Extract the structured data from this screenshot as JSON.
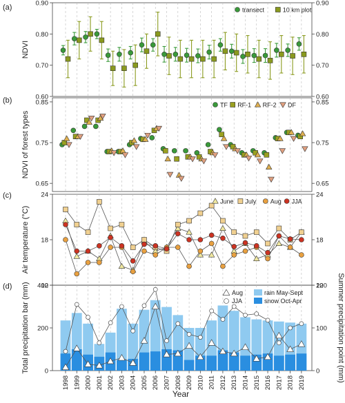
{
  "figure": {
    "x_label": "Year",
    "years": [
      "1998",
      "1999",
      "2000",
      "2001",
      "2002",
      "2003",
      "2004",
      "2005",
      "2006",
      "2007",
      "2008",
      "2009",
      "2010",
      "2011",
      "2012",
      "2013",
      "2014",
      "2015",
      "2016",
      "2017",
      "2018",
      "2019"
    ],
    "colors": {
      "ndvi_transect": "#3a9a3a",
      "ndvi_plot": "#8a9a1e",
      "tf": "#3a9a3a",
      "rf1": "#9aa020",
      "rf2": "#e0b050",
      "df": "#e0a080",
      "june": "#f0e8a0",
      "july": "#f0d090",
      "aug": "#e8a040",
      "jja": "#cc3322",
      "rain": "#8fcaf0",
      "snow": "#2a8ee0"
    }
  },
  "chart_data": [
    {
      "panel": "(a)",
      "type": "scatter",
      "ylabel": "NDVI",
      "ylim": [
        0.6,
        0.9
      ],
      "yticks": [
        "0.60",
        "0.70",
        "0.80",
        "0.90"
      ],
      "right_axis": true,
      "legend": {
        "position": "top-right",
        "entries": [
          "transect",
          "10 km plot"
        ]
      },
      "series": [
        {
          "name": "transect",
          "marker": "circle",
          "x": [
            1998,
            1999,
            2000,
            2001,
            2002,
            2003,
            2004,
            2005,
            2006,
            2007,
            2008,
            2009,
            2010,
            2011,
            2012,
            2013,
            2014,
            2015,
            2016,
            2017,
            2018,
            2019
          ],
          "y": [
            0.748,
            0.785,
            0.79,
            0.8,
            0.732,
            0.735,
            0.74,
            0.765,
            0.765,
            0.735,
            0.735,
            0.732,
            0.73,
            0.742,
            0.765,
            0.745,
            0.728,
            0.731,
            0.731,
            0.748,
            0.748,
            0.768
          ],
          "err": [
            0.015,
            0.02,
            0.018,
            0.015,
            0.02,
            0.022,
            0.02,
            0.022,
            0.02,
            0.025,
            0.022,
            0.022,
            0.022,
            0.022,
            0.02,
            0.022,
            0.022,
            0.022,
            0.022,
            0.022,
            0.02,
            0.02
          ]
        },
        {
          "name": "10 km plot",
          "marker": "square",
          "x": [
            1998,
            1999,
            2000,
            2001,
            2002,
            2003,
            2004,
            2005,
            2006,
            2007,
            2008,
            2009,
            2010,
            2011,
            2012,
            2013,
            2014,
            2015,
            2016,
            2017,
            2018,
            2019
          ],
          "y": [
            0.72,
            0.78,
            0.8,
            0.78,
            0.69,
            0.69,
            0.7,
            0.745,
            0.8,
            0.73,
            0.72,
            0.72,
            0.72,
            0.72,
            0.745,
            0.74,
            0.735,
            0.72,
            0.715,
            0.735,
            0.73,
            0.735
          ],
          "err": [
            0.06,
            0.06,
            0.055,
            0.06,
            0.055,
            0.06,
            0.065,
            0.055,
            0.07,
            0.06,
            0.06,
            0.06,
            0.06,
            0.06,
            0.06,
            0.06,
            0.06,
            0.06,
            0.06,
            0.06,
            0.06,
            0.06
          ]
        }
      ]
    },
    {
      "panel": "(b)",
      "type": "scatter",
      "ylabel": "NDVI of forest types",
      "ylim": [
        0.63,
        0.86
      ],
      "yticks": [
        "0.65",
        "0.75",
        "0.85"
      ],
      "right_axis": true,
      "legend": {
        "position": "top-right",
        "entries": [
          "TF",
          "RF-1",
          "RF-2",
          "DF"
        ]
      },
      "series": [
        {
          "name": "TF",
          "marker": "circle",
          "x": [
            1998,
            1999,
            2000,
            2001,
            2002,
            2003,
            2004,
            2005,
            2006,
            2007,
            2008,
            2009,
            2010,
            2011,
            2012,
            2013,
            2014,
            2015,
            2016,
            2017,
            2018,
            2019
          ],
          "y": [
            0.745,
            0.78,
            0.79,
            0.79,
            0.728,
            0.728,
            0.745,
            0.76,
            0.762,
            0.735,
            0.73,
            0.73,
            0.725,
            0.745,
            0.782,
            0.745,
            0.725,
            0.73,
            0.725,
            0.762,
            0.775,
            0.768
          ]
        },
        {
          "name": "RF-1",
          "marker": "square",
          "x": [
            1998,
            1999,
            2000,
            2001,
            2002,
            2003,
            2004,
            2005,
            2006,
            2007,
            2008,
            2009,
            2010,
            2011,
            2012,
            2013,
            2014,
            2015,
            2016,
            2017,
            2018,
            2019
          ],
          "y": [
            0.75,
            0.765,
            0.805,
            0.805,
            0.728,
            0.728,
            0.75,
            0.758,
            0.78,
            0.73,
            0.71,
            0.715,
            0.715,
            0.728,
            0.77,
            0.74,
            0.72,
            0.725,
            0.72,
            0.76,
            0.775,
            0.765
          ]
        },
        {
          "name": "RF-2",
          "marker": "triangle-up",
          "x": [
            1998,
            1999,
            2000,
            2001,
            2002,
            2003,
            2004,
            2005,
            2006,
            2007,
            2008,
            2009,
            2010,
            2011,
            2012,
            2013,
            2014,
            2015,
            2016,
            2017,
            2018,
            2019
          ],
          "y": [
            0.76,
            0.765,
            0.8,
            0.81,
            0.73,
            0.73,
            0.755,
            0.758,
            0.785,
            0.71,
            0.67,
            0.715,
            0.71,
            0.725,
            0.76,
            0.735,
            0.72,
            0.72,
            0.69,
            0.76,
            0.775,
            0.772
          ]
        },
        {
          "name": "DF",
          "marker": "triangle-down",
          "x": [
            1998,
            1999,
            2000,
            2001,
            2002,
            2003,
            2004,
            2005,
            2006,
            2007,
            2008,
            2009,
            2010,
            2011,
            2012,
            2013,
            2014,
            2015,
            2016,
            2017,
            2018,
            2019
          ],
          "y": [
            0.745,
            0.765,
            0.81,
            0.815,
            0.725,
            0.72,
            0.74,
            0.768,
            0.785,
            0.672,
            0.662,
            0.71,
            0.705,
            0.72,
            0.74,
            0.73,
            0.712,
            0.705,
            0.66,
            0.73,
            0.76,
            0.735
          ]
        }
      ]
    },
    {
      "panel": "(c)",
      "type": "line",
      "ylabel": "Air temperature (°C)",
      "ylim": [
        12,
        24
      ],
      "yticks": [
        "12",
        "18",
        "24"
      ],
      "right_axis": true,
      "legend": {
        "position": "top-right",
        "entries": [
          "June",
          "July",
          "Aug",
          "JJA"
        ]
      },
      "series": [
        {
          "name": "June",
          "marker": "triangle-up",
          "x": [
            1998,
            1999,
            2000,
            2001,
            2002,
            2003,
            2004,
            2005,
            2006,
            2007,
            2008,
            2009,
            2010,
            2011,
            2012,
            2013,
            2014,
            2015,
            2016,
            2017,
            2018,
            2019
          ],
          "y": [
            20.5,
            15.8,
            16.5,
            15.5,
            18.5,
            14.5,
            14.0,
            17.8,
            16.5,
            17.0,
            19.5,
            19.0,
            16.0,
            16.0,
            19.5,
            16.5,
            17.5,
            15.5,
            16.0,
            17.5,
            17.0,
            19.0
          ]
        },
        {
          "name": "July",
          "marker": "square",
          "x": [
            1998,
            1999,
            2000,
            2001,
            2002,
            2003,
            2004,
            2005,
            2006,
            2007,
            2008,
            2009,
            2010,
            2011,
            2012,
            2013,
            2014,
            2015,
            2016,
            2017,
            2018,
            2019
          ],
          "y": [
            22.0,
            20.0,
            19.0,
            23.0,
            19.5,
            20.0,
            17.0,
            18.0,
            17.0,
            16.5,
            20.0,
            20.5,
            21.5,
            22.5,
            20.5,
            19.0,
            18.5,
            19.0,
            17.5,
            19.5,
            18.0,
            19.0
          ]
        },
        {
          "name": "Aug",
          "marker": "circle",
          "x": [
            1998,
            1999,
            2000,
            2001,
            2002,
            2003,
            2004,
            2005,
            2006,
            2007,
            2008,
            2009,
            2010,
            2011,
            2012,
            2013,
            2014,
            2015,
            2016,
            2017,
            2018,
            2019
          ],
          "y": [
            18.0,
            13.5,
            15.0,
            15.0,
            17.0,
            17.0,
            13.8,
            16.5,
            16.0,
            17.0,
            17.0,
            14.5,
            16.5,
            17.5,
            14.5,
            16.0,
            16.5,
            17.0,
            15.5,
            18.5,
            17.0,
            16.0
          ]
        },
        {
          "name": "JJA",
          "marker": "circle",
          "x": [
            1998,
            1999,
            2000,
            2001,
            2002,
            2003,
            2004,
            2005,
            2006,
            2007,
            2008,
            2009,
            2010,
            2011,
            2012,
            2013,
            2014,
            2015,
            2016,
            2017,
            2018,
            2019
          ],
          "y": [
            20.0,
            16.5,
            16.5,
            17.2,
            18.3,
            17.2,
            15.2,
            17.4,
            17.2,
            16.8,
            18.8,
            18.0,
            18.0,
            18.6,
            18.2,
            17.1,
            17.6,
            17.2,
            16.3,
            18.5,
            18.1,
            18.0
          ]
        }
      ]
    },
    {
      "panel": "(d)",
      "type": "bar",
      "ylabel": "Total precipitation bar (mm)",
      "y2label": "Summer precipitation point (mm)",
      "ylim": [
        0,
        400
      ],
      "yticks": [
        "0",
        "200",
        "400"
      ],
      "y2lim": [
        0,
        200
      ],
      "y2ticks": [
        "0",
        "100",
        "200"
      ],
      "legend": {
        "position": "top-right",
        "entries": [
          "Aug",
          "JJA",
          "rain May-Sept",
          "snow Oct-Apr"
        ]
      },
      "categories": [
        "1998",
        "1999",
        "2000",
        "2001",
        "2002",
        "2003",
        "2004",
        "2005",
        "2006",
        "2007",
        "2008",
        "2009",
        "2010",
        "2011",
        "2012",
        "2013",
        "2014",
        "2015",
        "2016",
        "2017",
        "2018",
        "2019"
      ],
      "series": [
        {
          "name": "rain May-Sept",
          "stacked_total": [
            235,
            270,
            220,
            125,
            178,
            290,
            220,
            285,
            330,
            298,
            260,
            200,
            200,
            235,
            305,
            280,
            250,
            240,
            235,
            230,
            225,
            220
          ]
        },
        {
          "name": "snow Oct-Apr",
          "values": [
            80,
            100,
            75,
            65,
            85,
            50,
            55,
            85,
            90,
            100,
            95,
            50,
            70,
            70,
            95,
            85,
            70,
            75,
            80,
            70,
            75,
            80
          ]
        },
        {
          "name": "Aug",
          "axis": "right",
          "marker": "triangle-up",
          "values": [
            8,
            52,
            15,
            12,
            22,
            30,
            18,
            70,
            150,
            38,
            40,
            58,
            32,
            65,
            45,
            40,
            55,
            28,
            32,
            82,
            50,
            62
          ]
        },
        {
          "name": "JJA",
          "axis": "right",
          "marker": "circle",
          "values": [
            45,
            155,
            125,
            65,
            112,
            150,
            93,
            152,
            190,
            70,
            110,
            85,
            78,
            140,
            120,
            150,
            130,
            133,
            118,
            65,
            100,
            110
          ]
        }
      ]
    }
  ]
}
